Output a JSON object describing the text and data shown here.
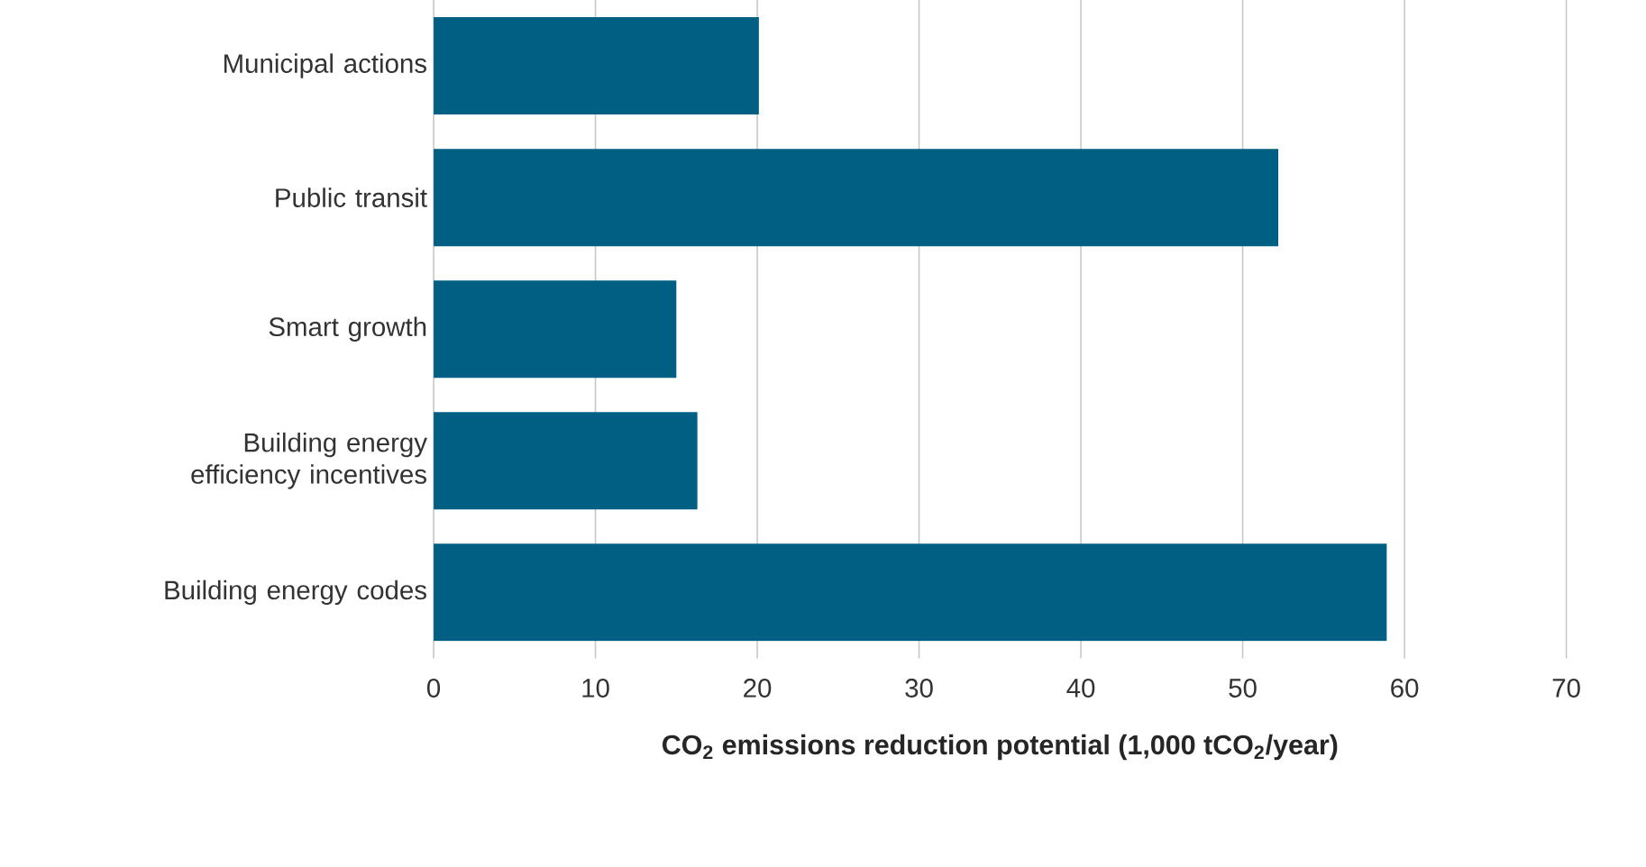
{
  "chart_data": {
    "type": "bar",
    "orientation": "horizontal",
    "categories": [
      "Municipal actions",
      "Public transit",
      "Smart growth",
      "Building energy efficiency incentives",
      "Building energy codes"
    ],
    "values": [
      20.1,
      52.2,
      15.0,
      16.3,
      58.9
    ],
    "color": "#005f83",
    "xlabel": "CO$_{2}$ emissions reduction potential (1,000 tCO$_{2}$/year)",
    "xlim": [
      0,
      70
    ],
    "xticks": [
      0,
      10,
      20,
      30,
      40,
      50,
      60,
      70
    ],
    "grid": "x"
  }
}
